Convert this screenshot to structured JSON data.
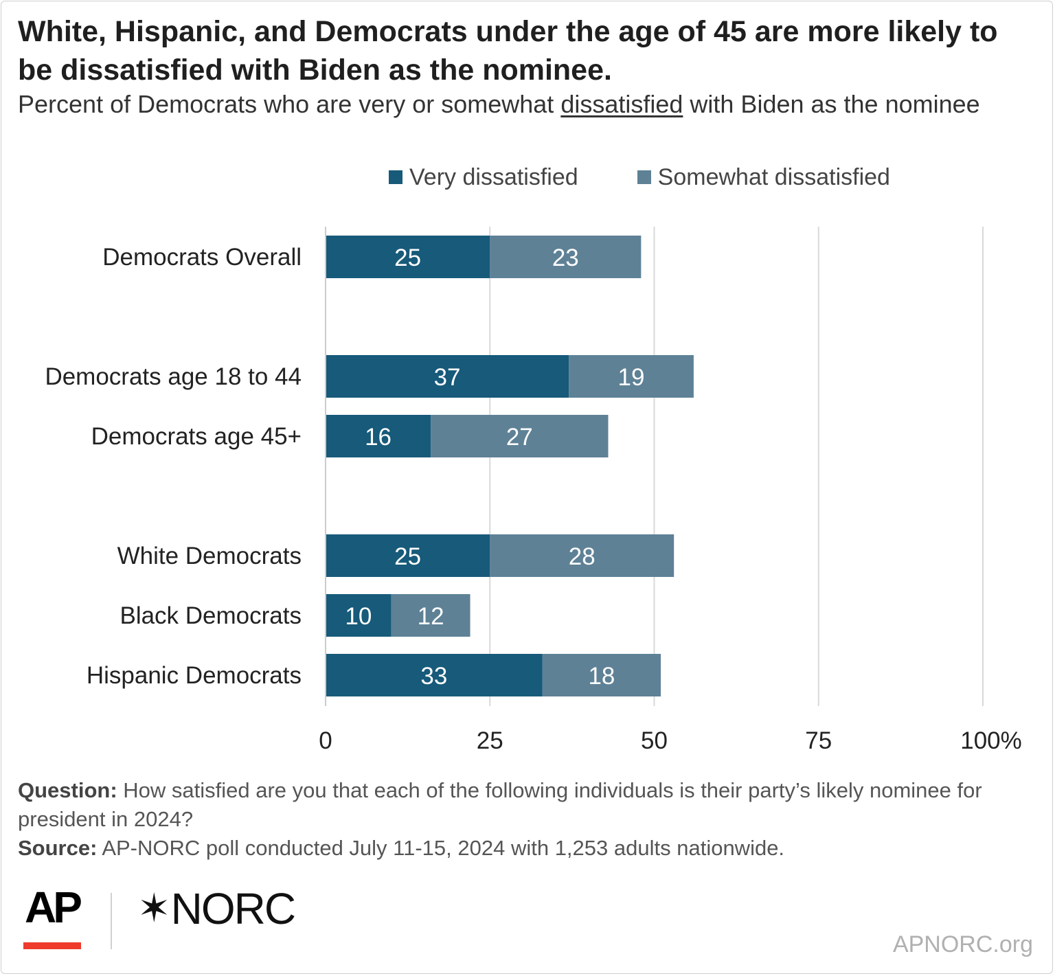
{
  "title": "White, Hispanic, and Democrats under the age of 45 are more likely to be dissatisfied with Biden as the nominee.",
  "subtitle": {
    "before": "Percent of Democrats who are very or somewhat ",
    "underlined": "dissatisfied",
    "after": " with Biden as the nominee"
  },
  "colors": {
    "very": "#175a7a",
    "somewhat": "#5e8196",
    "grid": "#d9d9d9",
    "bar_label": "#ffffff"
  },
  "chart_data": {
    "type": "bar",
    "orientation": "horizontal",
    "stacked": true,
    "categories": [
      "Democrats Overall",
      "Democrats age 18 to 44",
      "Democrats age 45+",
      "White Democrats",
      "Black Democrats",
      "Hispanic Democrats"
    ],
    "groups": [
      [
        "Democrats Overall"
      ],
      [
        "Democrats age 18 to 44",
        "Democrats age 45+"
      ],
      [
        "White Democrats",
        "Black Democrats",
        "Hispanic Democrats"
      ]
    ],
    "series": [
      {
        "name": "Very dissatisfied",
        "values": [
          25,
          37,
          16,
          25,
          10,
          33
        ]
      },
      {
        "name": "Somewhat dissatisfied",
        "values": [
          23,
          19,
          27,
          28,
          12,
          18
        ]
      }
    ],
    "xlim": [
      0,
      100
    ],
    "xticks": [
      0,
      25,
      50,
      75,
      100
    ],
    "xtick_labels": [
      "0",
      "25",
      "50",
      "75",
      "100%"
    ],
    "grid": true,
    "legend": "top"
  },
  "footnote": {
    "question_label": "Question:",
    "question": " How satisfied are you that each of the following individuals is their party’s likely nominee for president in 2024?",
    "source_label": "Source:",
    "source": " AP-NORC poll conducted July 11-15, 2024 with 1,253 adults nationwide."
  },
  "logos": {
    "ap": "AP",
    "norc": "NORC"
  },
  "site": "APNORC.org"
}
